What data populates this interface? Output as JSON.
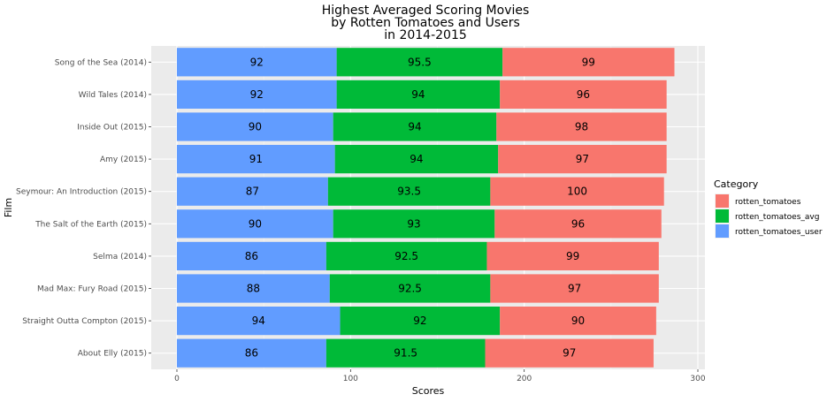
{
  "chart_data": {
    "type": "bar",
    "orientation": "horizontal",
    "stacked": true,
    "title_lines": [
      "Highest Averaged Scoring Movies",
      "by Rotten Tomatoes and Users",
      "in 2014-2015"
    ],
    "xlabel": "Scores",
    "ylabel": "Film",
    "xlim": [
      0,
      300
    ],
    "x_ticks": [
      0,
      100,
      200,
      300
    ],
    "grid": true,
    "legend": {
      "title": "Category",
      "position": "right"
    },
    "categories": [
      "Song of the Sea (2014)",
      "Wild Tales (2014)",
      "Inside Out (2015)",
      "Amy (2015)",
      "Seymour: An Introduction (2015)",
      "The Salt of the Earth (2015)",
      "Selma (2014)",
      "Mad Max: Fury Road (2015)",
      "Straight Outta Compton (2015)",
      "About Elly (2015)"
    ],
    "series": [
      {
        "name": "rotten_tomatoes_user",
        "color": "#619cff",
        "values": [
          92,
          92,
          90,
          91,
          87,
          90,
          86,
          88,
          94,
          86
        ]
      },
      {
        "name": "rotten_tomatoes_avg",
        "color": "#00ba38",
        "values": [
          95.5,
          94,
          94,
          94,
          93.5,
          93,
          92.5,
          92.5,
          92,
          91.5
        ]
      },
      {
        "name": "rotten_tomatoes",
        "color": "#f8766d",
        "values": [
          99,
          96,
          98,
          97,
          100,
          96,
          99,
          97,
          90,
          97
        ]
      }
    ],
    "legend_order": [
      "rotten_tomatoes",
      "rotten_tomatoes_avg",
      "rotten_tomatoes_user"
    ]
  }
}
